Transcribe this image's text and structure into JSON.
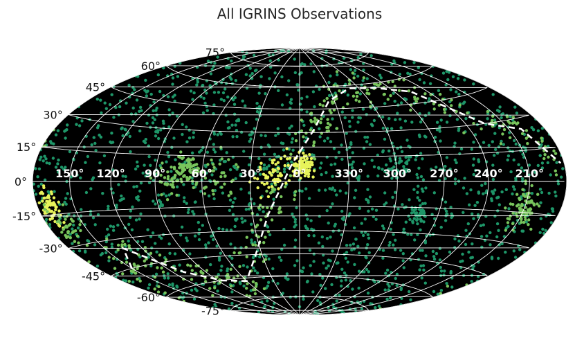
{
  "chart_data": {
    "type": "scatter",
    "projection": "aitoff-hammer",
    "title": "All IGRINS Observations",
    "xlabel": "",
    "ylabel": "",
    "grid": true,
    "background_color": "#000000",
    "grid_color": "#ffffff",
    "point_colors": {
      "sparse": "#1e9668",
      "medium": "#78c45c",
      "dense": "#e8f35a"
    },
    "path_color": "#ffffff",
    "lat_ticks": [
      {
        "value": 75,
        "label": "75°"
      },
      {
        "value": 60,
        "label": "60°"
      },
      {
        "value": 45,
        "label": "45°"
      },
      {
        "value": 30,
        "label": "30°"
      },
      {
        "value": 15,
        "label": "15°"
      },
      {
        "value": 0,
        "label": "0°"
      },
      {
        "value": -15,
        "label": "-15°"
      },
      {
        "value": -30,
        "label": "-30°"
      },
      {
        "value": -45,
        "label": "-45°"
      },
      {
        "value": -60,
        "label": "-60°"
      },
      {
        "value": -75,
        "label": "-75°"
      }
    ],
    "lon_ticks": [
      {
        "value": 150,
        "label": "150°"
      },
      {
        "value": 120,
        "label": "120°"
      },
      {
        "value": 90,
        "label": "90°"
      },
      {
        "value": 60,
        "label": "60°"
      },
      {
        "value": 30,
        "label": "30°"
      },
      {
        "value": 0,
        "label": "0°"
      },
      {
        "value": 330,
        "label": "330°"
      },
      {
        "value": 300,
        "label": "300°"
      },
      {
        "value": 270,
        "label": "270°"
      },
      {
        "value": 240,
        "label": "240°"
      },
      {
        "value": 210,
        "label": "210°"
      }
    ],
    "dashed_path": [
      {
        "lon": 183,
        "lat": -60
      },
      {
        "lon": 150,
        "lat": -45
      },
      {
        "lon": 135,
        "lat": -35
      },
      {
        "lon": 110,
        "lat": -52
      },
      {
        "lon": 85,
        "lat": -60
      },
      {
        "lon": 60,
        "lat": -62
      },
      {
        "lon": 35,
        "lat": -45
      },
      {
        "lon": 20,
        "lat": -20
      },
      {
        "lon": 5,
        "lat": 10
      },
      {
        "lon": 350,
        "lat": 32
      },
      {
        "lon": 335,
        "lat": 50
      },
      {
        "lon": 310,
        "lat": 58
      },
      {
        "lon": 285,
        "lat": 57
      },
      {
        "lon": 255,
        "lat": 52
      },
      {
        "lon": 225,
        "lat": 30
      },
      {
        "lon": 200,
        "lat": 25
      },
      {
        "lon": 183,
        "lat": 8
      }
    ],
    "clusters": [
      {
        "lon": 357,
        "lat": 10,
        "count": 90,
        "spread": 3,
        "density": "dense"
      },
      {
        "lon": 170,
        "lat": -12,
        "count": 70,
        "spread": 4,
        "density": "dense"
      },
      {
        "lon": 165,
        "lat": -20,
        "count": 40,
        "spread": 6,
        "density": "medium"
      },
      {
        "lon": 210,
        "lat": -13,
        "count": 80,
        "spread": 5,
        "density": "medium"
      },
      {
        "lon": 70,
        "lat": 7,
        "count": 70,
        "spread": 4,
        "density": "medium"
      },
      {
        "lon": 80,
        "lat": 2,
        "count": 40,
        "spread": 5,
        "density": "medium"
      },
      {
        "lon": 283,
        "lat": -18,
        "count": 45,
        "spread": 3,
        "density": "sparse"
      },
      {
        "lon": 15,
        "lat": 5,
        "count": 60,
        "spread": 6,
        "density": "dense"
      },
      {
        "lon": 50,
        "lat": 3,
        "count": 40,
        "spread": 6,
        "density": "medium"
      },
      {
        "lon": 300,
        "lat": 10,
        "count": 40,
        "spread": 7,
        "density": "sparse"
      }
    ],
    "background_count": 1600,
    "plane_count": 320
  }
}
